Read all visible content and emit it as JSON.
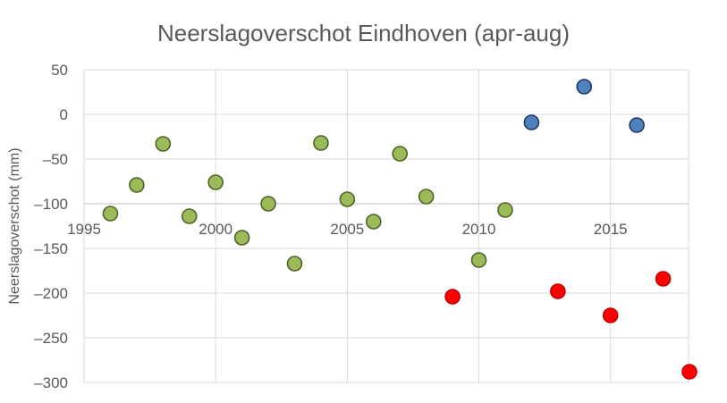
{
  "chart_data": {
    "type": "scatter",
    "title": "Neerslagoverschot Eindhoven (apr-aug)",
    "xlabel": "",
    "ylabel": "Neerslagoverschot (mm)",
    "xlim": [
      1995,
      2017.8
    ],
    "ylim": [
      -300,
      50
    ],
    "x_ticks": [
      1995,
      2000,
      2005,
      2010,
      2015
    ],
    "y_ticks": [
      50,
      0,
      -50,
      -100,
      -150,
      -200,
      -250,
      -300
    ],
    "grid": true,
    "legend": "none",
    "series": [
      {
        "color": "#9bbb59",
        "edge_color": "#4f6228",
        "points": [
          {
            "x": 1996,
            "y": -111
          },
          {
            "x": 1997,
            "y": -79
          },
          {
            "x": 1998,
            "y": -33
          },
          {
            "x": 1999,
            "y": -114
          },
          {
            "x": 2000,
            "y": -76
          },
          {
            "x": 2001,
            "y": -138
          },
          {
            "x": 2002,
            "y": -100
          },
          {
            "x": 2003,
            "y": -167
          },
          {
            "x": 2004,
            "y": -32
          },
          {
            "x": 2005,
            "y": -95
          },
          {
            "x": 2006,
            "y": -120
          },
          {
            "x": 2007,
            "y": -44
          },
          {
            "x": 2008,
            "y": -92
          },
          {
            "x": 2010,
            "y": -163
          },
          {
            "x": 2011,
            "y": -107
          }
        ]
      },
      {
        "color": "#4f81bd",
        "edge_color": "#1f3864",
        "points": [
          {
            "x": 2012,
            "y": -9
          },
          {
            "x": 2014,
            "y": 31
          },
          {
            "x": 2016,
            "y": -12
          }
        ]
      },
      {
        "color": "#ff0000",
        "edge_color": "#c00000",
        "points": [
          {
            "x": 2009,
            "y": -204
          },
          {
            "x": 2013,
            "y": -198
          },
          {
            "x": 2015,
            "y": -225
          },
          {
            "x": 2017,
            "y": -184
          },
          {
            "x": 2018,
            "y": -288
          }
        ]
      }
    ]
  }
}
